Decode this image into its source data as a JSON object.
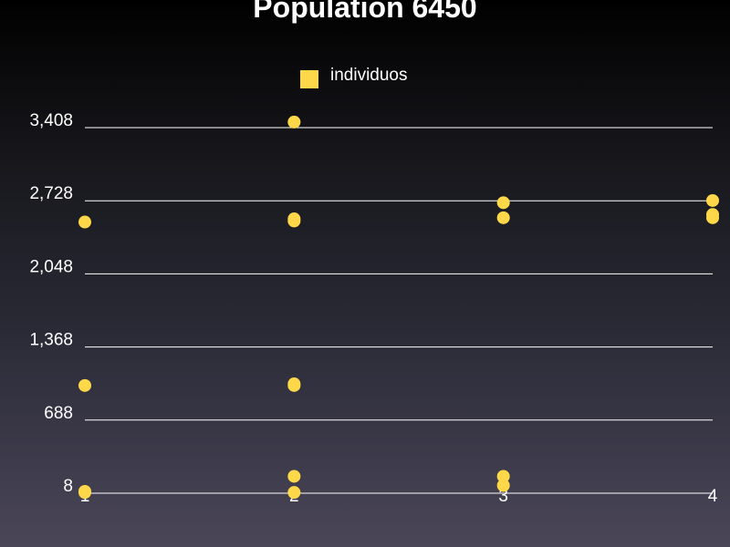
{
  "chart_data": {
    "type": "scatter",
    "title": "Population 6450",
    "xlabel": "",
    "ylabel": "",
    "x_ticks": [
      1,
      2,
      3,
      4
    ],
    "y_ticks": [
      8,
      688,
      1368,
      2048,
      2728,
      3408
    ],
    "y_tick_labels": [
      "8",
      "688",
      "1,368",
      "2,048",
      "2,728",
      "3,408"
    ],
    "xlim": [
      1,
      4
    ],
    "ylim": [
      8,
      3408
    ],
    "grid": "horizontal",
    "legend": "top-center",
    "series": [
      {
        "name": "individuos",
        "color": "#ffd84a",
        "points": [
          {
            "x": 1,
            "y": 2530
          },
          {
            "x": 1,
            "y": 1010
          },
          {
            "x": 1,
            "y": 15
          },
          {
            "x": 1,
            "y": 25
          },
          {
            "x": 2,
            "y": 3460
          },
          {
            "x": 2,
            "y": 2560
          },
          {
            "x": 2,
            "y": 2540
          },
          {
            "x": 2,
            "y": 1025
          },
          {
            "x": 2,
            "y": 1010
          },
          {
            "x": 2,
            "y": 165
          },
          {
            "x": 2,
            "y": 15
          },
          {
            "x": 3,
            "y": 2710
          },
          {
            "x": 3,
            "y": 2570
          },
          {
            "x": 3,
            "y": 165
          },
          {
            "x": 3,
            "y": 80
          },
          {
            "x": 4,
            "y": 2730
          },
          {
            "x": 4,
            "y": 2600
          },
          {
            "x": 4,
            "y": 2570
          }
        ]
      }
    ]
  }
}
